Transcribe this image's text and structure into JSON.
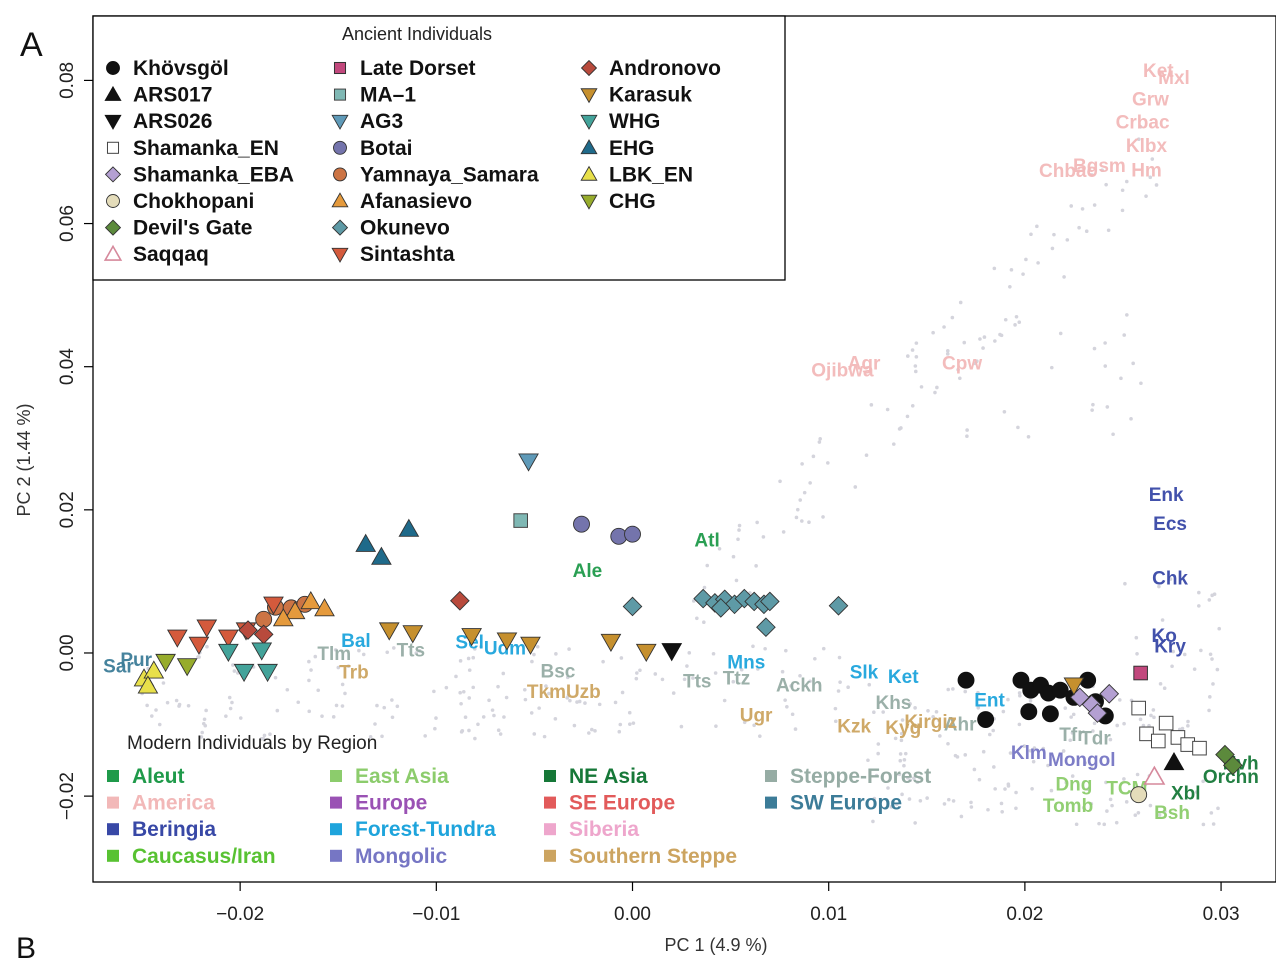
{
  "panel_label": "A",
  "panel_label_next": "B",
  "chart_data": {
    "type": "scatter",
    "xlabel": "PC 1 (4.9 %)",
    "ylabel": "PC 2 (1.44 %)",
    "xlim": [
      -0.0275,
      0.0328
    ],
    "ylim": [
      -0.032,
      0.089
    ],
    "x_ticks": [
      -0.02,
      -0.01,
      0.0,
      0.01,
      0.02,
      0.03
    ],
    "x_tick_labels": [
      "−0.02",
      "−0.01",
      "0.00",
      "0.01",
      "0.02",
      "0.03"
    ],
    "y_ticks": [
      -0.02,
      0.0,
      0.02,
      0.04,
      0.06,
      0.08
    ],
    "y_tick_labels": [
      "−0.02",
      "0.00",
      "0.02",
      "0.04",
      "0.06",
      "0.08"
    ],
    "grid": false,
    "ancient_legend": {
      "title": "Ancient Individuals",
      "placement": "top-left",
      "entries": [
        {
          "name": "Khövsgöl",
          "shape": "circle",
          "color": "#111111"
        },
        {
          "name": "ARS017",
          "shape": "tri-up",
          "color": "#111111"
        },
        {
          "name": "ARS026",
          "shape": "tri-down",
          "color": "#111111"
        },
        {
          "name": "Shamanka_EN",
          "shape": "square-open",
          "color": "#ffffff"
        },
        {
          "name": "Shamanka_EBA",
          "shape": "diamond",
          "color": "#b4a0d2"
        },
        {
          "name": "Chokhopani",
          "shape": "circle",
          "color": "#e4dcba"
        },
        {
          "name": "Devil's Gate",
          "shape": "diamond",
          "color": "#5c8a3c"
        },
        {
          "name": "Saqqaq",
          "shape": "tri-up-open",
          "color": "#d6899c"
        },
        {
          "name": "Late Dorset",
          "shape": "square",
          "color": "#c2487d"
        },
        {
          "name": "MA–1",
          "shape": "square-open",
          "color": "#7fb8b4"
        },
        {
          "name": "AG3",
          "shape": "tri-down",
          "color": "#5f9ab8"
        },
        {
          "name": "Botai",
          "shape": "circle",
          "color": "#7474ac"
        },
        {
          "name": "Yamnaya_Samara",
          "shape": "circle",
          "color": "#cc7444"
        },
        {
          "name": "Afanasievo",
          "shape": "tri-up",
          "color": "#e59a3c"
        },
        {
          "name": "Okunevo",
          "shape": "diamond",
          "color": "#5e9aa6"
        },
        {
          "name": "Sintashta",
          "shape": "tri-down",
          "color": "#d45a3c"
        },
        {
          "name": "Andronovo",
          "shape": "diamond",
          "color": "#b84a3c"
        },
        {
          "name": "Karasuk",
          "shape": "tri-down",
          "color": "#c6902e"
        },
        {
          "name": "WHG",
          "shape": "tri-down",
          "color": "#43a39a"
        },
        {
          "name": "EHG",
          "shape": "tri-up",
          "color": "#1f6a8a"
        },
        {
          "name": "LBK_EN",
          "shape": "tri-up",
          "color": "#e8e04a"
        },
        {
          "name": "CHG",
          "shape": "tri-down",
          "color": "#97ac2c"
        }
      ]
    },
    "region_legend": {
      "title": "Modern Individuals by Region",
      "placement": "bottom-left",
      "entries": [
        {
          "name": "Aleut",
          "color": "#1f9a4a"
        },
        {
          "name": "America",
          "color": "#f2b8b8"
        },
        {
          "name": "Beringia",
          "color": "#3848a6"
        },
        {
          "name": "Caucasus/Iran",
          "color": "#58c232"
        },
        {
          "name": "East Asia",
          "color": "#8ccc6c"
        },
        {
          "name": "Europe",
          "color": "#9a52b4"
        },
        {
          "name": "Forest-Tundra",
          "color": "#1ea4dc"
        },
        {
          "name": "Mongolic",
          "color": "#7676c4"
        },
        {
          "name": "NE Asia",
          "color": "#167838"
        },
        {
          "name": "SE Europe",
          "color": "#e25a5a"
        },
        {
          "name": "Siberia",
          "color": "#eea6cc"
        },
        {
          "name": "Southern Steppe",
          "color": "#cca460"
        },
        {
          "name": "Steppe-Forest",
          "color": "#96aca4"
        },
        {
          "name": "SW Europe",
          "color": "#3c7c98"
        }
      ]
    },
    "ancient_points": [
      {
        "group": "Khövsgöl",
        "x": 0.017,
        "y": -0.0038
      },
      {
        "group": "Khövsgöl",
        "x": 0.018,
        "y": -0.0093
      },
      {
        "group": "Khövsgöl",
        "x": 0.0198,
        "y": -0.0038
      },
      {
        "group": "Khövsgöl",
        "x": 0.0203,
        "y": -0.0052
      },
      {
        "group": "Khövsgöl",
        "x": 0.0208,
        "y": -0.0045
      },
      {
        "group": "Khövsgöl",
        "x": 0.0212,
        "y": -0.0056
      },
      {
        "group": "Khövsgöl",
        "x": 0.0218,
        "y": -0.0052
      },
      {
        "group": "Khövsgöl",
        "x": 0.0225,
        "y": -0.0062
      },
      {
        "group": "Khövsgöl",
        "x": 0.0232,
        "y": -0.0038
      },
      {
        "group": "Khövsgöl",
        "x": 0.0236,
        "y": -0.0068
      },
      {
        "group": "Khövsgöl",
        "x": 0.0241,
        "y": -0.0088
      },
      {
        "group": "Khövsgöl",
        "x": 0.0202,
        "y": -0.0082
      },
      {
        "group": "Khövsgöl",
        "x": 0.0213,
        "y": -0.0085
      },
      {
        "group": "ARS017",
        "x": 0.0276,
        "y": -0.0153
      },
      {
        "group": "ARS026",
        "x": 0.002,
        "y": 0.0003
      },
      {
        "group": "Shamanka_EN",
        "x": 0.0258,
        "y": -0.0077
      },
      {
        "group": "Shamanka_EN",
        "x": 0.0262,
        "y": -0.0113
      },
      {
        "group": "Shamanka_EN",
        "x": 0.0272,
        "y": -0.0098
      },
      {
        "group": "Shamanka_EN",
        "x": 0.0278,
        "y": -0.0118
      },
      {
        "group": "Shamanka_EN",
        "x": 0.0283,
        "y": -0.0128
      },
      {
        "group": "Shamanka_EN",
        "x": 0.0289,
        "y": -0.0133
      },
      {
        "group": "Shamanka_EN",
        "x": 0.0268,
        "y": -0.0123
      },
      {
        "group": "Shamanka_EBA",
        "x": 0.0228,
        "y": -0.0062
      },
      {
        "group": "Shamanka_EBA",
        "x": 0.0234,
        "y": -0.0072
      },
      {
        "group": "Shamanka_EBA",
        "x": 0.0243,
        "y": -0.0057
      },
      {
        "group": "Shamanka_EBA",
        "x": 0.0237,
        "y": -0.0084
      },
      {
        "group": "Chokhopani",
        "x": 0.0258,
        "y": -0.0198
      },
      {
        "group": "Devil's Gate",
        "x": 0.0302,
        "y": -0.0142
      },
      {
        "group": "Devil's Gate",
        "x": 0.0306,
        "y": -0.0157
      },
      {
        "group": "Saqqaq",
        "x": 0.0266,
        "y": -0.0173
      },
      {
        "group": "Late Dorset",
        "x": 0.0259,
        "y": -0.0028
      },
      {
        "group": "MA–1",
        "x": -0.0057,
        "y": 0.0185
      },
      {
        "group": "AG3",
        "x": -0.0053,
        "y": 0.0268
      },
      {
        "group": "Botai",
        "x": -0.0026,
        "y": 0.018
      },
      {
        "group": "Botai",
        "x": -0.0007,
        "y": 0.0163
      },
      {
        "group": "Botai",
        "x": 0.0,
        "y": 0.0166
      },
      {
        "group": "Yamnaya_Samara",
        "x": -0.0182,
        "y": 0.0064
      },
      {
        "group": "Yamnaya_Samara",
        "x": -0.0174,
        "y": 0.0063
      },
      {
        "group": "Yamnaya_Samara",
        "x": -0.0167,
        "y": 0.0068
      },
      {
        "group": "Yamnaya_Samara",
        "x": -0.0188,
        "y": 0.0047
      },
      {
        "group": "Afanasievo",
        "x": -0.0172,
        "y": 0.0058
      },
      {
        "group": "Afanasievo",
        "x": -0.0164,
        "y": 0.0072
      },
      {
        "group": "Afanasievo",
        "x": -0.0157,
        "y": 0.0062
      },
      {
        "group": "Afanasievo",
        "x": -0.0178,
        "y": 0.0048
      },
      {
        "group": "Okunevo",
        "x": 0.0,
        "y": 0.0065
      },
      {
        "group": "Okunevo",
        "x": 0.0036,
        "y": 0.0076
      },
      {
        "group": "Okunevo",
        "x": 0.0042,
        "y": 0.007
      },
      {
        "group": "Okunevo",
        "x": 0.0047,
        "y": 0.0075
      },
      {
        "group": "Okunevo",
        "x": 0.0052,
        "y": 0.0068
      },
      {
        "group": "Okunevo",
        "x": 0.0057,
        "y": 0.0076
      },
      {
        "group": "Okunevo",
        "x": 0.0062,
        "y": 0.0072
      },
      {
        "group": "Okunevo",
        "x": 0.0067,
        "y": 0.0068
      },
      {
        "group": "Okunevo",
        "x": 0.007,
        "y": 0.0072
      },
      {
        "group": "Okunevo",
        "x": 0.0068,
        "y": 0.0036
      },
      {
        "group": "Okunevo",
        "x": 0.0105,
        "y": 0.0066
      },
      {
        "group": "Okunevo",
        "x": 0.0045,
        "y": 0.0063
      },
      {
        "group": "Sintashta",
        "x": -0.0232,
        "y": 0.0022
      },
      {
        "group": "Sintashta",
        "x": -0.0217,
        "y": 0.0036
      },
      {
        "group": "Sintashta",
        "x": -0.0197,
        "y": 0.0032
      },
      {
        "group": "Sintashta",
        "x": -0.0183,
        "y": 0.0068
      },
      {
        "group": "Sintashta",
        "x": -0.0206,
        "y": 0.0022
      },
      {
        "group": "Sintashta",
        "x": -0.0221,
        "y": 0.0012
      },
      {
        "group": "Andronovo",
        "x": -0.0088,
        "y": 0.0073
      },
      {
        "group": "Andronovo",
        "x": -0.0196,
        "y": 0.0032
      },
      {
        "group": "Andronovo",
        "x": -0.0188,
        "y": 0.0026
      },
      {
        "group": "Karasuk",
        "x": -0.0124,
        "y": 0.0032
      },
      {
        "group": "Karasuk",
        "x": -0.0112,
        "y": 0.0028
      },
      {
        "group": "Karasuk",
        "x": -0.0082,
        "y": 0.0024
      },
      {
        "group": "Karasuk",
        "x": -0.0064,
        "y": 0.0018
      },
      {
        "group": "Karasuk",
        "x": -0.0052,
        "y": 0.0012
      },
      {
        "group": "Karasuk",
        "x": -0.0011,
        "y": 0.0016
      },
      {
        "group": "Karasuk",
        "x": 0.0007,
        "y": 0.0002
      },
      {
        "group": "Karasuk",
        "x": 0.0225,
        "y": -0.0045
      },
      {
        "group": "WHG",
        "x": -0.0206,
        "y": 0.0002
      },
      {
        "group": "WHG",
        "x": -0.0189,
        "y": 0.0004
      },
      {
        "group": "WHG",
        "x": -0.0198,
        "y": -0.0026
      },
      {
        "group": "WHG",
        "x": -0.0186,
        "y": -0.0026
      },
      {
        "group": "EHG",
        "x": -0.0136,
        "y": 0.0152
      },
      {
        "group": "EHG",
        "x": -0.0128,
        "y": 0.0134
      },
      {
        "group": "EHG",
        "x": -0.0114,
        "y": 0.0173
      },
      {
        "group": "LBK_EN",
        "x": -0.0249,
        "y": -0.0036
      },
      {
        "group": "LBK_EN",
        "x": -0.0244,
        "y": -0.0025
      },
      {
        "group": "LBK_EN",
        "x": -0.0247,
        "y": -0.0046
      },
      {
        "group": "CHG",
        "x": -0.0227,
        "y": -0.0018
      },
      {
        "group": "CHG",
        "x": -0.0238,
        "y": -0.0012
      }
    ],
    "population_labels": [
      {
        "text": "Enk",
        "x": 0.0272,
        "y": 0.0212,
        "region": "Beringia"
      },
      {
        "text": "Ecs",
        "x": 0.0274,
        "y": 0.0172,
        "region": "Beringia"
      },
      {
        "text": "Chk",
        "x": 0.0274,
        "y": 0.0096,
        "region": "Beringia"
      },
      {
        "text": "Ko",
        "x": 0.0271,
        "y": 0.0015,
        "region": "Beringia"
      },
      {
        "text": "Kry",
        "x": 0.0274,
        "y": 0.0001,
        "region": "Beringia"
      },
      {
        "text": "Atl",
        "x": 0.0038,
        "y": 0.0149,
        "region": "Aleut"
      },
      {
        "text": "Ale",
        "x": -0.0023,
        "y": 0.0106,
        "region": "Aleut"
      },
      {
        "text": "Ojibwa",
        "x": 0.0107,
        "y": 0.0386,
        "region": "America"
      },
      {
        "text": "Agr",
        "x": 0.0118,
        "y": 0.0396,
        "region": "America"
      },
      {
        "text": "Cpw",
        "x": 0.0168,
        "y": 0.0396,
        "region": "America"
      },
      {
        "text": "Ket",
        "x": 0.0268,
        "y": 0.0805,
        "region": "America"
      },
      {
        "text": "Mxl",
        "x": 0.0276,
        "y": 0.0795,
        "region": "America"
      },
      {
        "text": "Grw",
        "x": 0.0264,
        "y": 0.0765,
        "region": "America"
      },
      {
        "text": "Crbac",
        "x": 0.026,
        "y": 0.0733,
        "region": "America"
      },
      {
        "text": "Klbx",
        "x": 0.0262,
        "y": 0.07,
        "region": "America"
      },
      {
        "text": "Chbac",
        "x": 0.0222,
        "y": 0.0665,
        "region": "America"
      },
      {
        "text": "Bgsm",
        "x": 0.0238,
        "y": 0.0672,
        "region": "America"
      },
      {
        "text": "Hm",
        "x": 0.0262,
        "y": 0.0666,
        "region": "America"
      },
      {
        "text": "Mns",
        "x": 0.0058,
        "y": -0.0022,
        "region": "Forest-Tundra"
      },
      {
        "text": "Slk",
        "x": 0.0118,
        "y": -0.0036,
        "region": "Forest-Tundra"
      },
      {
        "text": "Ket",
        "x": 0.0138,
        "y": -0.0042,
        "region": "Forest-Tundra"
      },
      {
        "text": "Ent",
        "x": 0.0182,
        "y": -0.0075,
        "region": "Forest-Tundra"
      },
      {
        "text": "Sel",
        "x": -0.0083,
        "y": 0.0006,
        "region": "Forest-Tundra"
      },
      {
        "text": "Udm",
        "x": -0.0065,
        "y": -0.0002,
        "region": "Forest-Tundra"
      },
      {
        "text": "Bal",
        "x": -0.0141,
        "y": 0.0008,
        "region": "Forest-Tundra"
      },
      {
        "text": "Tlm",
        "x": -0.0152,
        "y": -0.001,
        "region": "Steppe-Forest"
      },
      {
        "text": "Tts",
        "x": -0.0113,
        "y": -0.0005,
        "region": "Steppe-Forest"
      },
      {
        "text": "Tts",
        "x": 0.0033,
        "y": -0.0048,
        "region": "Steppe-Forest"
      },
      {
        "text": "Ttz",
        "x": 0.0053,
        "y": -0.0044,
        "region": "Steppe-Forest"
      },
      {
        "text": "Bsc",
        "x": -0.0038,
        "y": -0.0034,
        "region": "Steppe-Forest"
      },
      {
        "text": "Ackh",
        "x": 0.0085,
        "y": -0.0054,
        "region": "Steppe-Forest"
      },
      {
        "text": "Khs",
        "x": 0.0133,
        "y": -0.0078,
        "region": "Steppe-Forest"
      },
      {
        "text": "Ahr",
        "x": 0.0167,
        "y": -0.0108,
        "region": "Steppe-Forest"
      },
      {
        "text": "Trb",
        "x": -0.0142,
        "y": -0.0036,
        "region": "Southern Steppe"
      },
      {
        "text": "TkmUzb",
        "x": -0.0035,
        "y": -0.0063,
        "region": "Southern Steppe"
      },
      {
        "text": "Ugr",
        "x": 0.0063,
        "y": -0.0096,
        "region": "Southern Steppe"
      },
      {
        "text": "Kzk",
        "x": 0.0113,
        "y": -0.0111,
        "region": "Southern Steppe"
      },
      {
        "text": "Kyg",
        "x": 0.0138,
        "y": -0.0113,
        "region": "Southern Steppe"
      },
      {
        "text": "Kirgiz",
        "x": 0.0152,
        "y": -0.0105,
        "region": "Southern Steppe"
      },
      {
        "text": "Klm",
        "x": 0.0202,
        "y": -0.0148,
        "region": "Mongolic"
      },
      {
        "text": "Mongol",
        "x": 0.0229,
        "y": -0.0158,
        "region": "Mongolic"
      },
      {
        "text": "Tfr",
        "x": 0.0224,
        "y": -0.0123,
        "region": "Steppe-Forest"
      },
      {
        "text": "Tdr",
        "x": 0.0236,
        "y": -0.0128,
        "region": "Steppe-Forest"
      },
      {
        "text": "Dng",
        "x": 0.0225,
        "y": -0.0192,
        "region": "East Asia"
      },
      {
        "text": "TCM",
        "x": 0.0252,
        "y": -0.0198,
        "region": "East Asia"
      },
      {
        "text": "Tomb",
        "x": 0.0222,
        "y": -0.0222,
        "region": "East Asia"
      },
      {
        "text": "Bsh",
        "x": 0.0275,
        "y": -0.0232,
        "region": "East Asia"
      },
      {
        "text": "Orchn",
        "x": 0.0305,
        "y": -0.0182,
        "region": "NE Asia"
      },
      {
        "text": "Nvh",
        "x": 0.031,
        "y": -0.0163,
        "region": "NE Asia"
      },
      {
        "text": "Xbl",
        "x": 0.0282,
        "y": -0.0205,
        "region": "NE Asia"
      },
      {
        "text": "Pur",
        "x": -0.0253,
        "y": -0.0018,
        "region": "SW Europe"
      },
      {
        "text": "Sar",
        "x": -0.0262,
        "y": -0.0027,
        "region": "SW Europe"
      }
    ]
  }
}
